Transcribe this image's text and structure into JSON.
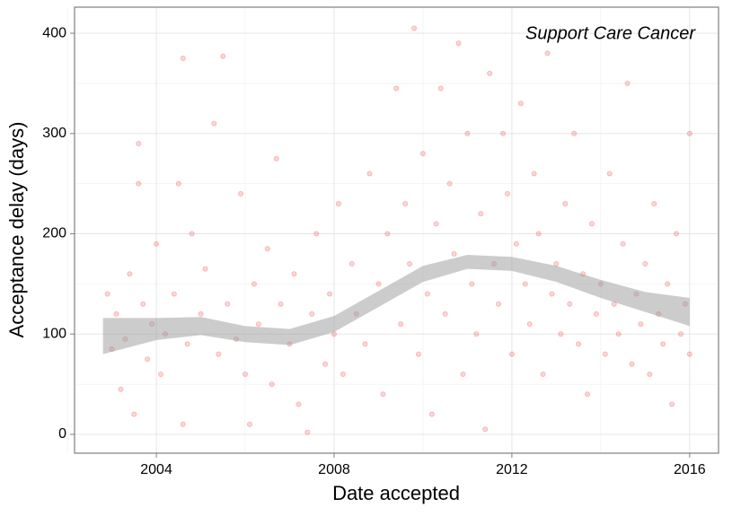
{
  "chart_data": {
    "type": "scatter",
    "x_label": "Date accepted",
    "y_label": "Acceptance delay (days)",
    "annotation": "Support Care Cancer",
    "x": [
      2002.9,
      2003.0,
      2003.1,
      2003.2,
      2003.3,
      2003.4,
      2003.5,
      2003.6,
      2003.6,
      2003.7,
      2003.8,
      2003.9,
      2004.0,
      2004.1,
      2004.2,
      2004.4,
      2004.5,
      2004.6,
      2004.6,
      2004.7,
      2004.8,
      2005.0,
      2005.1,
      2005.3,
      2005.4,
      2005.5,
      2005.6,
      2005.8,
      2005.9,
      2006.0,
      2006.1,
      2006.2,
      2006.3,
      2006.5,
      2006.6,
      2006.7,
      2006.8,
      2007.0,
      2007.1,
      2007.2,
      2007.4,
      2007.5,
      2007.6,
      2007.8,
      2007.9,
      2008.0,
      2008.1,
      2008.2,
      2008.4,
      2008.5,
      2008.7,
      2008.8,
      2009.0,
      2009.1,
      2009.2,
      2009.4,
      2009.5,
      2009.6,
      2009.7,
      2009.8,
      2009.9,
      2010.0,
      2010.1,
      2010.2,
      2010.3,
      2010.4,
      2010.5,
      2010.6,
      2010.7,
      2010.8,
      2010.9,
      2011.0,
      2011.1,
      2011.2,
      2011.3,
      2011.4,
      2011.5,
      2011.6,
      2011.7,
      2011.8,
      2011.9,
      2012.0,
      2012.1,
      2012.2,
      2012.3,
      2012.4,
      2012.5,
      2012.6,
      2012.7,
      2012.8,
      2012.9,
      2013.0,
      2013.1,
      2013.2,
      2013.3,
      2013.4,
      2013.5,
      2013.6,
      2013.7,
      2013.8,
      2013.9,
      2014.0,
      2014.1,
      2014.2,
      2014.3,
      2014.4,
      2014.5,
      2014.6,
      2014.7,
      2014.8,
      2014.9,
      2015.0,
      2015.1,
      2015.2,
      2015.3,
      2015.4,
      2015.5,
      2015.6,
      2015.7,
      2015.8,
      2015.9,
      2016.0,
      2016.0
    ],
    "values": [
      140,
      85,
      120,
      45,
      95,
      160,
      20,
      290,
      250,
      130,
      75,
      110,
      190,
      60,
      100,
      140,
      250,
      10,
      375,
      90,
      200,
      120,
      165,
      310,
      80,
      377,
      130,
      95,
      240,
      60,
      10,
      150,
      110,
      185,
      50,
      275,
      130,
      90,
      160,
      30,
      2,
      120,
      200,
      70,
      140,
      100,
      230,
      60,
      170,
      120,
      90,
      260,
      150,
      40,
      200,
      345,
      110,
      230,
      170,
      405,
      80,
      280,
      140,
      20,
      210,
      345,
      120,
      250,
      180,
      390,
      60,
      300,
      150,
      100,
      220,
      5,
      360,
      170,
      130,
      300,
      240,
      80,
      190,
      330,
      150,
      110,
      260,
      200,
      60,
      380,
      140,
      170,
      100,
      230,
      130,
      300,
      90,
      160,
      40,
      210,
      120,
      150,
      80,
      260,
      130,
      100,
      190,
      350,
      70,
      140,
      110,
      170,
      60,
      230,
      120,
      90,
      150,
      30,
      200,
      100,
      130,
      80,
      300
    ],
    "color": "#e41a1c",
    "point_alpha": 0.18,
    "smooth": {
      "x": [
        2002.8,
        2004,
        2005,
        2006,
        2007,
        2008,
        2009,
        2010,
        2011,
        2012,
        2013,
        2014,
        2015,
        2016
      ],
      "lower": [
        80,
        94,
        99,
        92,
        89,
        102,
        127,
        152,
        165,
        163,
        152,
        136,
        122,
        108
      ],
      "upper": [
        116,
        116,
        117,
        108,
        105,
        118,
        143,
        168,
        179,
        177,
        168,
        154,
        142,
        136
      ],
      "color": "#999999"
    },
    "xlim": [
      2002.16,
      2016.65
    ],
    "ylim": [
      -18.8,
      426
    ],
    "xticks": [
      2004,
      2008,
      2012,
      2016
    ],
    "yticks": [
      0,
      100,
      200,
      300,
      400
    ],
    "xminorticks": [
      2002,
      2006,
      2010,
      2014
    ],
    "yminorticks": [
      50,
      150,
      250,
      350
    ],
    "grid": true
  }
}
